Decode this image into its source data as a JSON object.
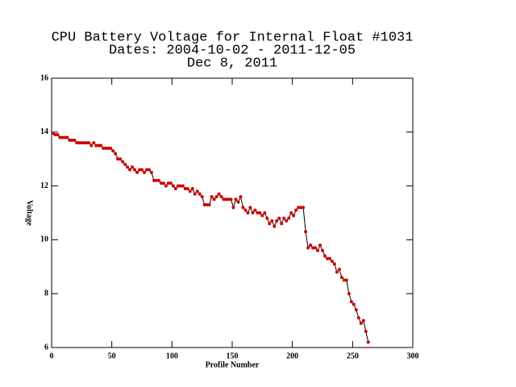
{
  "chart_data": {
    "type": "line",
    "title": [
      "CPU Battery Voltage for Internal Float #1031",
      "Dates:  2004-10-02 -  2011-12-05",
      "Dec  8, 2011"
    ],
    "x_label": "Profile Number",
    "y_label": "Voltage",
    "xlim": [
      0,
      300
    ],
    "ylim": [
      6,
      16
    ],
    "xticks": [
      0,
      50,
      100,
      150,
      200,
      250,
      300
    ],
    "yticks": [
      6,
      8,
      10,
      12,
      14,
      16
    ],
    "line_color": "#000000",
    "marker_color": "#cc0000",
    "x": [
      1,
      3,
      5,
      7,
      9,
      11,
      13,
      15,
      17,
      19,
      21,
      23,
      25,
      27,
      29,
      31,
      33,
      35,
      37,
      39,
      41,
      43,
      45,
      47,
      49,
      51,
      53,
      55,
      57,
      59,
      61,
      63,
      65,
      67,
      69,
      71,
      73,
      75,
      77,
      79,
      81,
      83,
      85,
      87,
      89,
      91,
      93,
      95,
      97,
      99,
      101,
      103,
      105,
      107,
      109,
      111,
      113,
      115,
      117,
      119,
      121,
      123,
      125,
      127,
      129,
      131,
      133,
      135,
      137,
      139,
      141,
      143,
      145,
      147,
      149,
      151,
      153,
      155,
      157,
      159,
      161,
      163,
      165,
      167,
      169,
      171,
      173,
      175,
      177,
      179,
      181,
      183,
      185,
      187,
      189,
      191,
      193,
      195,
      197,
      199,
      201,
      203,
      205,
      207,
      209,
      211,
      213,
      215,
      217,
      219,
      221,
      223,
      225,
      227,
      229,
      231,
      233,
      235,
      237,
      239,
      241,
      243,
      245,
      247,
      249,
      251,
      253,
      255,
      257,
      259,
      261,
      263
    ],
    "values": [
      13.95,
      13.9,
      13.9,
      13.8,
      13.8,
      13.8,
      13.8,
      13.7,
      13.7,
      13.7,
      13.6,
      13.6,
      13.6,
      13.6,
      13.6,
      13.6,
      13.5,
      13.6,
      13.5,
      13.5,
      13.5,
      13.4,
      13.4,
      13.4,
      13.4,
      13.3,
      13.2,
      13.0,
      13.0,
      12.9,
      12.8,
      12.7,
      12.6,
      12.7,
      12.6,
      12.5,
      12.6,
      12.6,
      12.5,
      12.6,
      12.6,
      12.5,
      12.2,
      12.2,
      12.2,
      12.1,
      12.1,
      12.0,
      12.1,
      12.1,
      12.0,
      11.9,
      12.0,
      12.0,
      12.0,
      11.9,
      11.9,
      11.8,
      11.9,
      11.7,
      11.8,
      11.7,
      11.6,
      11.3,
      11.3,
      11.3,
      11.6,
      11.5,
      11.6,
      11.7,
      11.6,
      11.5,
      11.5,
      11.5,
      11.5,
      11.2,
      11.5,
      11.4,
      11.6,
      11.2,
      11.1,
      11.0,
      11.2,
      11.0,
      11.1,
      11.0,
      11.0,
      10.9,
      11.0,
      10.8,
      10.6,
      10.7,
      10.5,
      10.7,
      10.8,
      10.6,
      10.8,
      10.7,
      10.8,
      11.0,
      10.9,
      11.1,
      11.2,
      11.2,
      11.2,
      10.3,
      9.7,
      9.8,
      9.7,
      9.7,
      9.6,
      9.8,
      9.6,
      9.4,
      9.3,
      9.3,
      9.2,
      9.1,
      8.8,
      8.9,
      8.6,
      8.5,
      8.5,
      8.0,
      7.7,
      7.6,
      7.4,
      7.1,
      6.9,
      7.0,
      6.6,
      6.2
    ]
  }
}
